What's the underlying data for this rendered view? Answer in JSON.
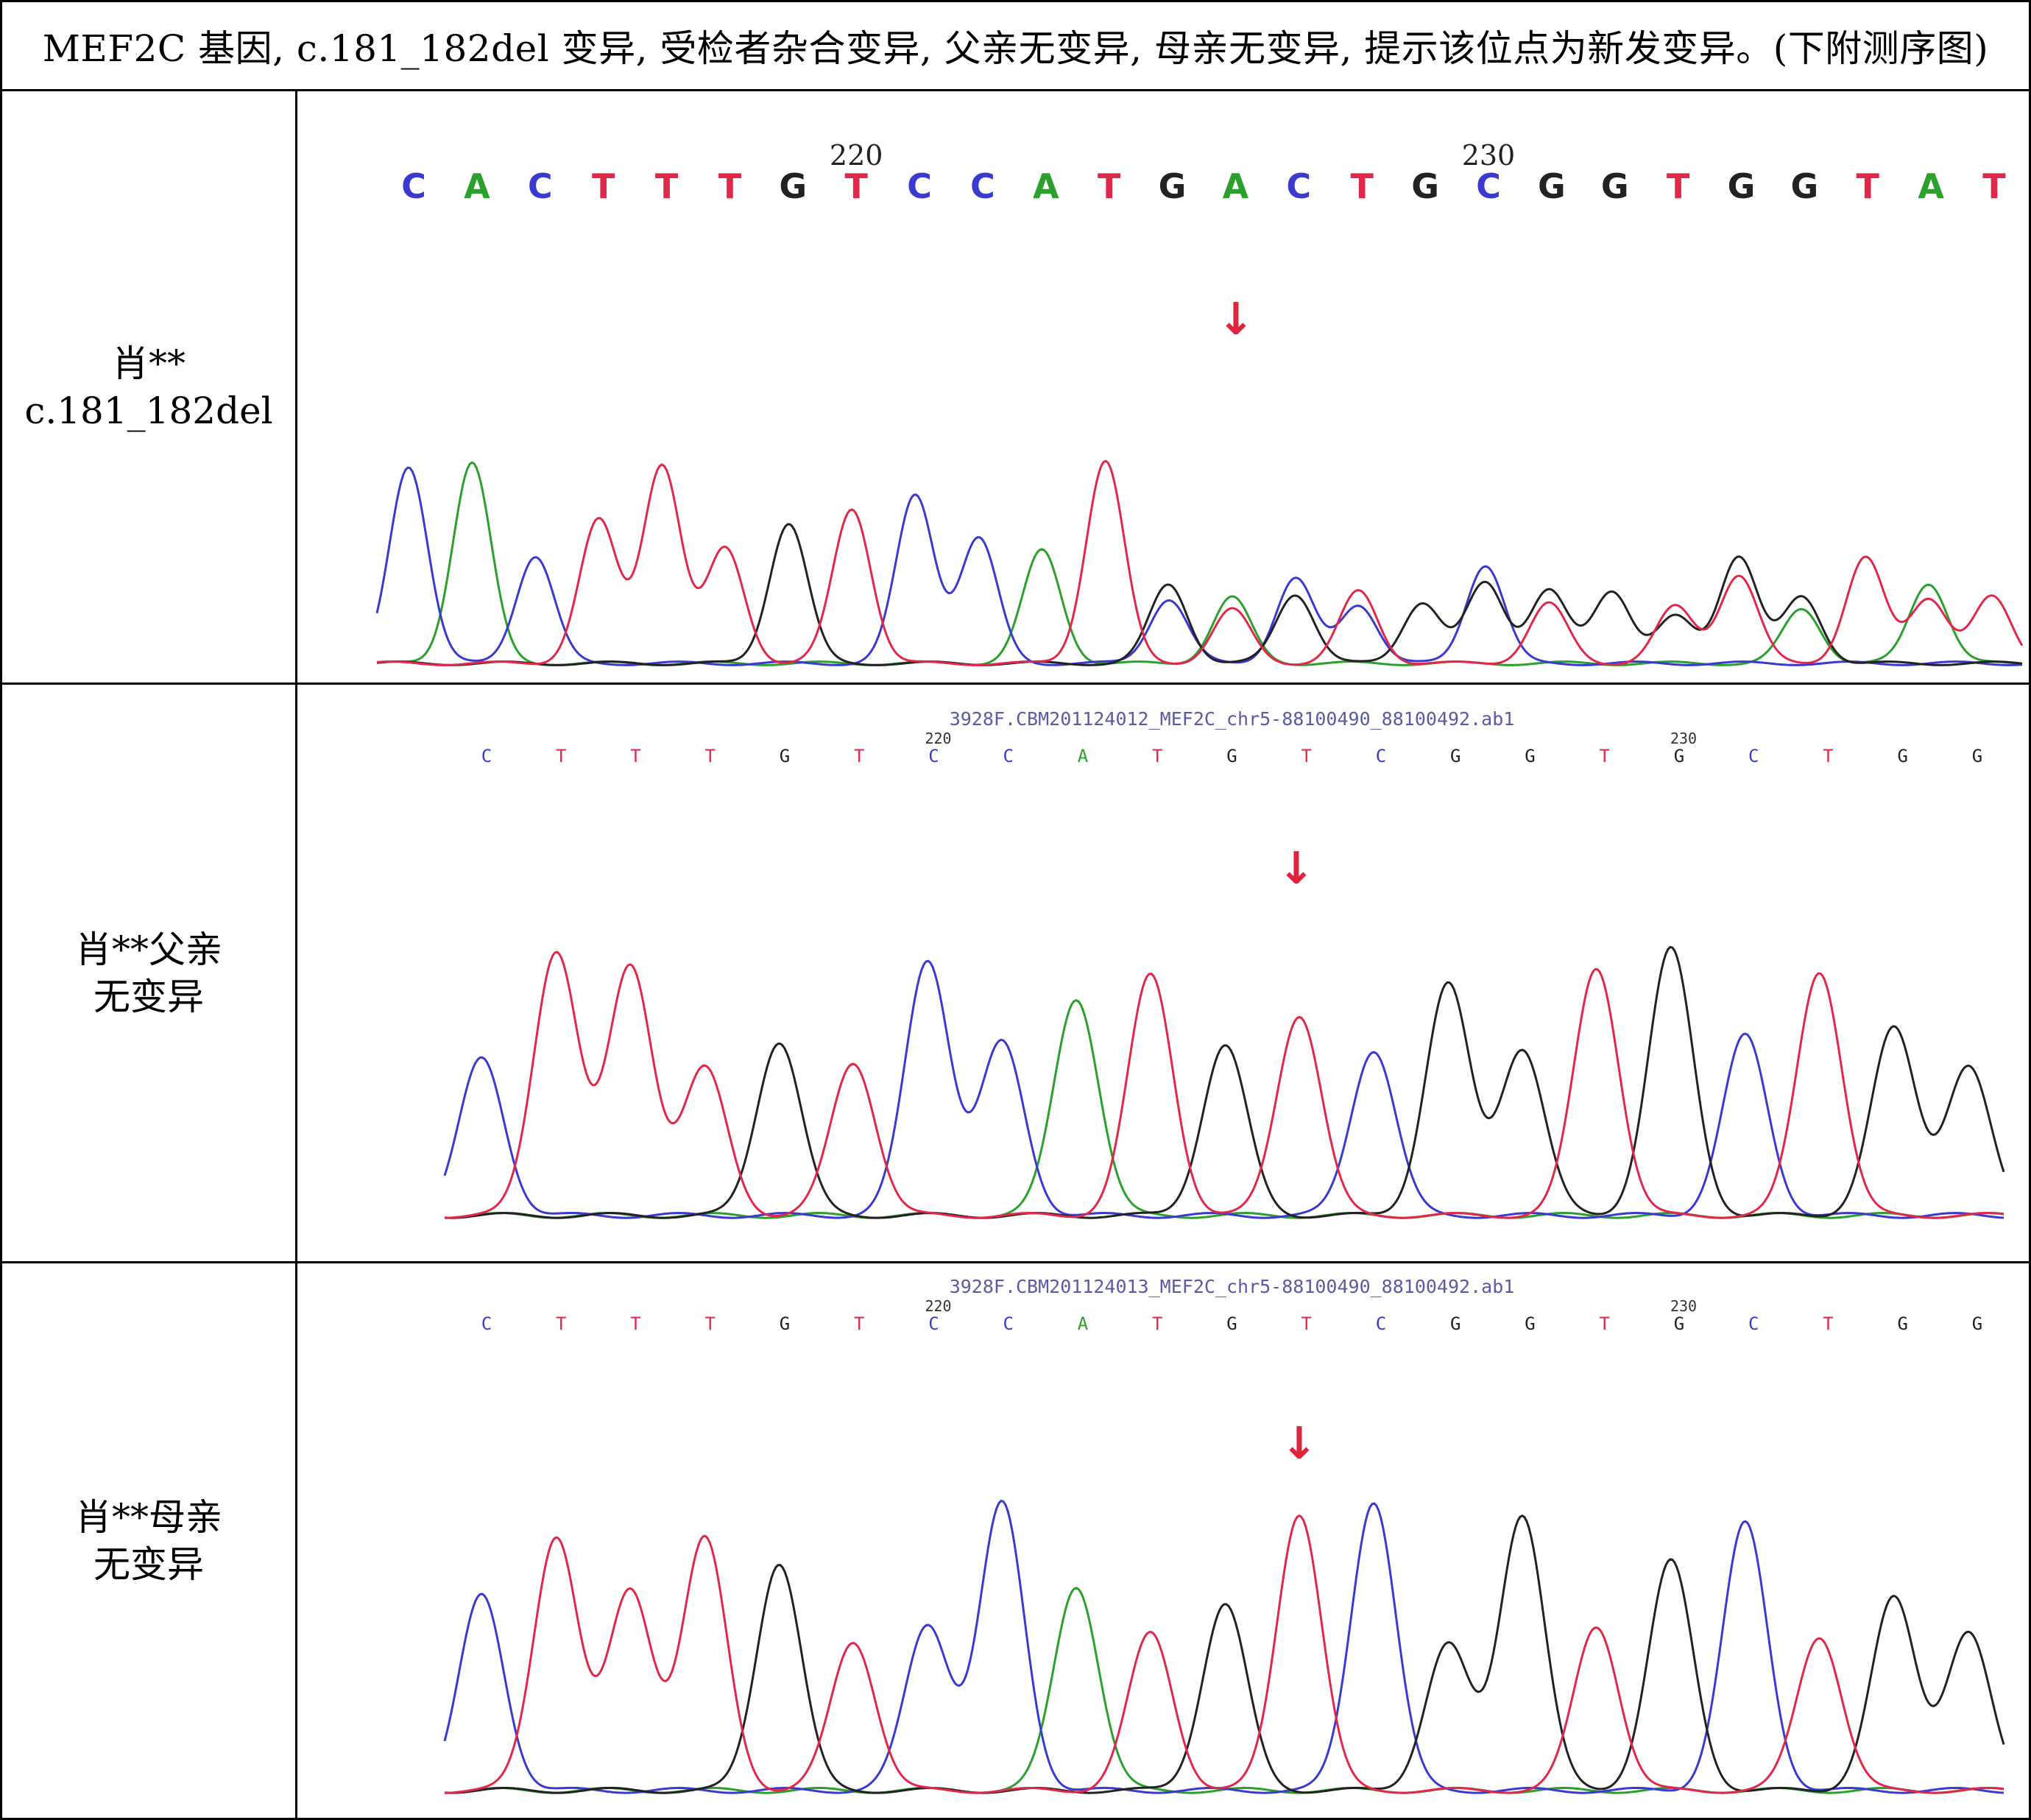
{
  "caption": "MEF2C 基因, c.181_182del 变异, 受检者杂合变异, 父亲无变异, 母亲无变异, 提示该位点为新发变异。(下附测序图)",
  "colors": {
    "A": "#2ca02c",
    "C": "#3a3ad0",
    "G": "#222222",
    "T": "#e0284a",
    "arrow": "#e0243c",
    "filename": "#5a5aa8"
  },
  "rows": [
    {
      "label_lines": [
        "肖**",
        "c.181_182del"
      ],
      "filename": "",
      "bases": [
        "C",
        "A",
        "C",
        "T",
        "T",
        "T",
        "G",
        "T",
        "C",
        "C",
        "A",
        "T",
        "G",
        "A",
        "C",
        "T",
        "G",
        "C",
        "G",
        "G",
        "T",
        "G",
        "G",
        "T",
        "A",
        "T"
      ],
      "position_labels": [
        {
          "text": "220",
          "index": 7
        },
        {
          "text": "230",
          "index": 17
        }
      ],
      "arrow_marker": "↓",
      "trace": "heterozygous"
    },
    {
      "label_lines": [
        "肖**父亲",
        "无变异"
      ],
      "filename": "3928F.CBM201124012_MEF2C_chr5-88100490_88100492.ab1",
      "bases": [
        "C",
        "T",
        "T",
        "T",
        "G",
        "T",
        "C",
        "C",
        "A",
        "T",
        "G",
        "T",
        "C",
        "G",
        "G",
        "T",
        "G",
        "C",
        "T",
        "G",
        "G"
      ],
      "position_labels": [
        {
          "text": "220",
          "index": 6
        },
        {
          "text": "230",
          "index": 16
        }
      ],
      "arrow_marker": "↓",
      "trace": "wildtype"
    },
    {
      "label_lines": [
        "肖**母亲",
        "无变异"
      ],
      "filename": "3928F.CBM201124013_MEF2C_chr5-88100490_88100492.ab1",
      "bases": [
        "C",
        "T",
        "T",
        "T",
        "G",
        "T",
        "C",
        "C",
        "A",
        "T",
        "G",
        "T",
        "C",
        "G",
        "G",
        "T",
        "G",
        "C",
        "T",
        "G",
        "G"
      ],
      "position_labels": [
        {
          "text": "220",
          "index": 6
        },
        {
          "text": "230",
          "index": 16
        }
      ],
      "arrow_marker": "↓",
      "trace": "wildtype"
    }
  ]
}
